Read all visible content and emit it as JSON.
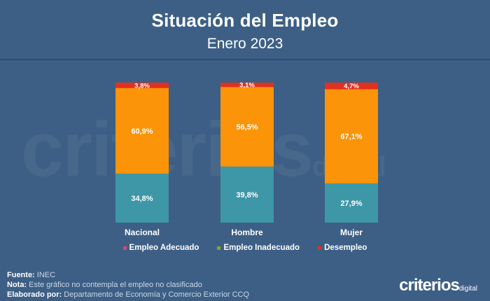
{
  "header": {
    "title": "Situación del Empleo",
    "subtitle": "Enero 2023"
  },
  "chart_data": {
    "type": "bar",
    "stacked": true,
    "categories": [
      "Nacional",
      "Hombre",
      "Mujer"
    ],
    "series": [
      {
        "name": "Empleo Adecuado",
        "color": "#3d97a6",
        "values": [
          34.8,
          39.8,
          27.9
        ],
        "labels": [
          "34,8%",
          "39,8%",
          "27,9%"
        ]
      },
      {
        "name": "Empleo Inadecuado",
        "color": "#fb9408",
        "values": [
          60.9,
          56.5,
          67.1
        ],
        "labels": [
          "60,9%",
          "56,5%",
          "67,1%"
        ]
      },
      {
        "name": "Desempleo",
        "color": "#e2301f",
        "values": [
          3.8,
          3.1,
          4.7
        ],
        "labels": [
          "3,8%",
          "3,1%",
          "4,7%"
        ]
      }
    ],
    "legend_swatch_colors": [
      "#e0407a",
      "#8fa21c",
      "#e2301f"
    ],
    "legend_position": "bottom"
  },
  "footer": {
    "source_label": "Fuente:",
    "source_value": "INEC",
    "note_label": "Nota:",
    "note_value": "Este gráfico no contempla el empleo no clasificado",
    "author_label": "Elaborado por:",
    "author_value": "Departamento de Economía y Comercio Exterior CCQ"
  },
  "watermark": {
    "main": "criterios",
    "sub": "digital"
  },
  "logo": {
    "main": "criterios",
    "sub": "digital"
  }
}
